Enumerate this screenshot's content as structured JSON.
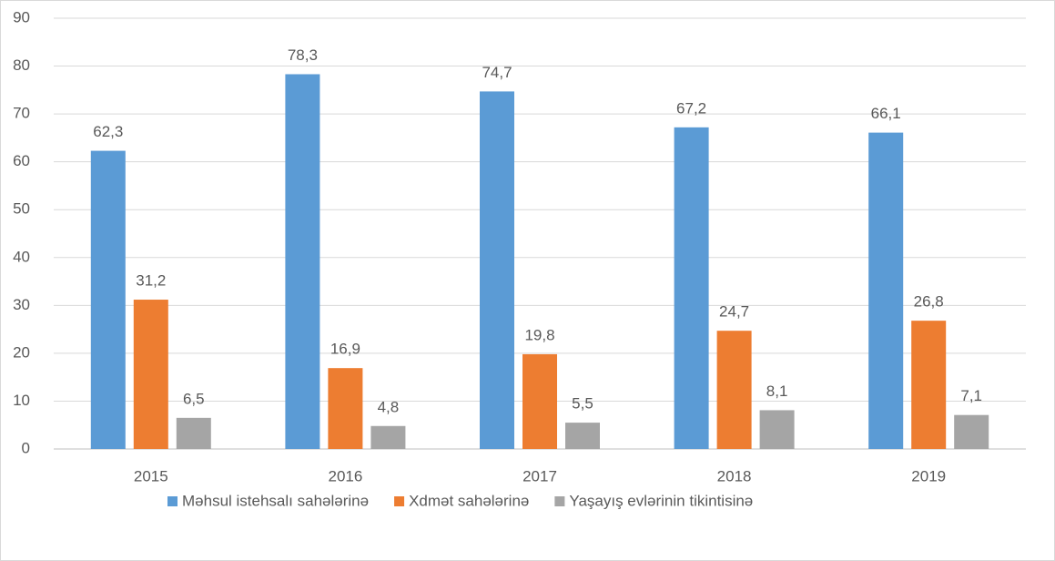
{
  "chart_data": {
    "type": "bar",
    "categories": [
      "2015",
      "2016",
      "2017",
      "2018",
      "2019"
    ],
    "series": [
      {
        "name": "Məhsul istehsalı sahələrinə",
        "color": "#5b9bd5",
        "values": [
          62.3,
          78.3,
          74.7,
          67.2,
          66.1
        ],
        "value_labels": [
          "62,3",
          "78,3",
          "74,7",
          "67,2",
          "66,1"
        ]
      },
      {
        "name": "Xdmət sahələrinə",
        "color": "#ed7d31",
        "values": [
          31.2,
          16.9,
          19.8,
          24.7,
          26.8
        ],
        "value_labels": [
          "31,2",
          "16,9",
          "19,8",
          "24,7",
          "26,8"
        ]
      },
      {
        "name": "Yaşayış evlərinin tikintisinə",
        "color": "#a5a5a5",
        "values": [
          6.5,
          4.8,
          5.5,
          8.1,
          7.1
        ],
        "value_labels": [
          "6,5",
          "4,8",
          "5,5",
          "8,1",
          "7,1"
        ]
      }
    ],
    "ylim": [
      0,
      90
    ],
    "yticks": [
      0,
      10,
      20,
      30,
      40,
      50,
      60,
      70,
      80,
      90
    ],
    "grid": true,
    "legend": "bottom"
  }
}
